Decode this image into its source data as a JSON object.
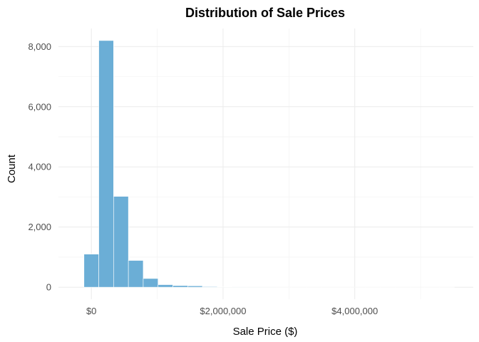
{
  "chart_data": {
    "type": "bar",
    "title": "Distribution of Sale Prices",
    "xlabel": "Sale Price ($)",
    "ylabel": "Count",
    "x_ticks": [
      {
        "value": 0,
        "label": "$0"
      },
      {
        "value": 2000000,
        "label": "$2,000,000"
      },
      {
        "value": 4000000,
        "label": "$4,000,000"
      }
    ],
    "y_ticks": [
      {
        "value": 0,
        "label": "0"
      },
      {
        "value": 2000,
        "label": "2,000"
      },
      {
        "value": 4000,
        "label": "4,000"
      },
      {
        "value": 6000,
        "label": "6,000"
      },
      {
        "value": 8000,
        "label": "8,000"
      }
    ],
    "xlim": [
      -500000,
      5800000
    ],
    "ylim": [
      -400,
      8600
    ],
    "bin_width": 225000,
    "bins": [
      {
        "x0": -112500,
        "x1": 112500,
        "count": 1100
      },
      {
        "x0": 112500,
        "x1": 337500,
        "count": 8200
      },
      {
        "x0": 337500,
        "x1": 562500,
        "count": 3020
      },
      {
        "x0": 562500,
        "x1": 787500,
        "count": 890
      },
      {
        "x0": 787500,
        "x1": 1012500,
        "count": 290
      },
      {
        "x0": 1012500,
        "x1": 1237500,
        "count": 85
      },
      {
        "x0": 1237500,
        "x1": 1462500,
        "count": 55
      },
      {
        "x0": 1462500,
        "x1": 1687500,
        "count": 45
      },
      {
        "x0": 1687500,
        "x1": 1912500,
        "count": 20
      },
      {
        "x0": 1912500,
        "x1": 2137500,
        "count": 8
      },
      {
        "x0": 2137500,
        "x1": 2362500,
        "count": 5
      },
      {
        "x0": 2362500,
        "x1": 2587500,
        "count": 3
      },
      {
        "x0": 2587500,
        "x1": 2812500,
        "count": 2
      },
      {
        "x0": 2812500,
        "x1": 3037500,
        "count": 1
      },
      {
        "x0": 3037500,
        "x1": 3262500,
        "count": 1
      },
      {
        "x0": 3262500,
        "x1": 3487500,
        "count": 1
      },
      {
        "x0": 3487500,
        "x1": 3712500,
        "count": 1
      },
      {
        "x0": 3712500,
        "x1": 3937500,
        "count": 1
      },
      {
        "x0": 3937500,
        "x1": 4162500,
        "count": 1
      },
      {
        "x0": 4162500,
        "x1": 4387500,
        "count": 1
      },
      {
        "x0": 4387500,
        "x1": 4612500,
        "count": 1
      },
      {
        "x0": 4612500,
        "x1": 4837500,
        "count": 1
      },
      {
        "x0": 4837500,
        "x1": 5062500,
        "count": 1
      },
      {
        "x0": 5062500,
        "x1": 5287500,
        "count": 1
      },
      {
        "x0": 5287500,
        "x1": 5512500,
        "count": 1
      }
    ],
    "grid": true,
    "bar_color": "#6baed6",
    "legend": "none"
  }
}
